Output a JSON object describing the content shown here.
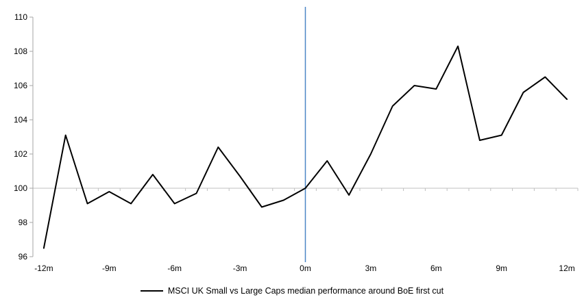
{
  "chart_data": {
    "type": "line",
    "title": "",
    "xlabel": "",
    "ylabel": "",
    "x": [
      -12,
      -11,
      -10,
      -9,
      -8,
      -7,
      -6,
      -5,
      -4,
      -3,
      -2,
      -1,
      0,
      1,
      2,
      3,
      4,
      5,
      6,
      7,
      8,
      9,
      10,
      11,
      12
    ],
    "series": [
      {
        "name": "MSCI UK Small vs Large Caps median performance around BoE first cut",
        "color": "#000000",
        "values": [
          96.5,
          103.1,
          99.1,
          99.8,
          99.1,
          100.8,
          99.1,
          99.7,
          102.4,
          100.7,
          98.9,
          99.3,
          100.0,
          101.6,
          99.6,
          102.0,
          104.8,
          106.0,
          105.8,
          108.3,
          102.8,
          103.1,
          105.6,
          106.5,
          105.2
        ]
      }
    ],
    "xlim": [
      -12.5,
      12.5
    ],
    "ylim": [
      96,
      110
    ],
    "y_ticks": [
      96,
      98,
      100,
      102,
      104,
      106,
      108,
      110
    ],
    "x_ticks": {
      "values": [
        -12,
        -9,
        -6,
        -3,
        0,
        3,
        6,
        9,
        12
      ],
      "labels": [
        "-12m",
        "-9m",
        "-6m",
        "-3m",
        "0m",
        "3m",
        "6m",
        "9m",
        "12m"
      ]
    },
    "baseline_value": 100,
    "event_line_x": 0,
    "grid": "off",
    "minor_tick_style": "between categories, every 1 month, below the 100 baseline",
    "legend_position": "bottom",
    "colors": {
      "series_line": "#000000",
      "event_line": "#4a86c6",
      "baseline_line": "#bfbfbf",
      "axis": "#a6a6a6",
      "text": "#000000"
    }
  }
}
